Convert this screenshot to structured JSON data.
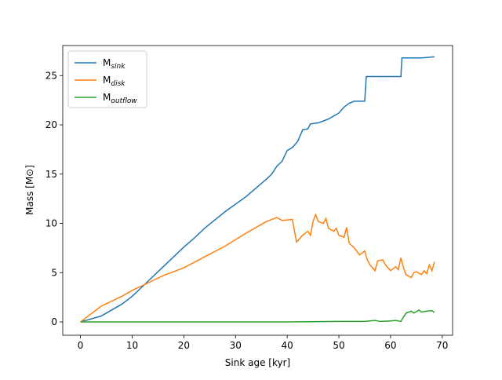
{
  "chart_data": {
    "type": "line",
    "xlabel": "Sink age [kyr]",
    "ylabel": "Mass [M⊙]",
    "xlim": [
      -3.43,
      72.0
    ],
    "ylim": [
      -1.35,
      28.05
    ],
    "xticks": [
      0,
      10,
      20,
      30,
      40,
      50,
      60,
      70
    ],
    "yticks": [
      0,
      5,
      10,
      15,
      20,
      25
    ],
    "legend": "upper left",
    "series": [
      {
        "name": "Msink",
        "color": "#1f77b4",
        "x": [
          0,
          4,
          8,
          10,
          12,
          16,
          20,
          22,
          24,
          28,
          32,
          34,
          36,
          37,
          38,
          39,
          40,
          41,
          42,
          43,
          44,
          44.5,
          46,
          48,
          50,
          51,
          52,
          53,
          55,
          55.3,
          62,
          62.2,
          66,
          68.5
        ],
        "values": [
          0,
          0.6,
          1.8,
          2.6,
          3.6,
          5.6,
          7.6,
          8.5,
          9.5,
          11.2,
          12.7,
          13.6,
          14.5,
          15.0,
          15.8,
          16.3,
          17.4,
          17.7,
          18.3,
          19.5,
          19.6,
          20.1,
          20.2,
          20.6,
          21.2,
          21.8,
          22.2,
          22.4,
          22.4,
          24.9,
          24.9,
          26.8,
          26.8,
          26.9
        ]
      },
      {
        "name": "Mdisk",
        "color": "#ff7f0e",
        "x": [
          0,
          4,
          8,
          10,
          12,
          16,
          20,
          24,
          28,
          32,
          36,
          38,
          39,
          41,
          41.8,
          43,
          44,
          44.5,
          45,
          45.5,
          46,
          47,
          47.5,
          48,
          49,
          49.5,
          50,
          51,
          51.5,
          52,
          53,
          54,
          55,
          55.5,
          56,
          57,
          57.5,
          58.5,
          59,
          60,
          61,
          61.5,
          62,
          62.5,
          63,
          64,
          64.5,
          65,
          66,
          66.5,
          67,
          67.5,
          68,
          68.5
        ],
        "values": [
          0,
          1.6,
          2.6,
          3.2,
          3.7,
          4.7,
          5.5,
          6.6,
          7.7,
          9.0,
          10.2,
          10.6,
          10.3,
          10.4,
          8.1,
          8.8,
          9.2,
          8.8,
          10.2,
          10.9,
          10.2,
          10.0,
          10.5,
          9.5,
          9.2,
          9.5,
          8.8,
          8.6,
          9.6,
          8.0,
          7.5,
          6.8,
          7.2,
          6.3,
          5.8,
          5.2,
          6.2,
          6.3,
          5.8,
          5.2,
          5.6,
          5.3,
          6.5,
          5.5,
          4.8,
          4.5,
          5.0,
          5.1,
          4.8,
          5.2,
          4.9,
          5.8,
          5.2,
          6.1
        ]
      },
      {
        "name": "Moutflow",
        "color": "#2ca02c",
        "x": [
          0,
          40,
          50,
          55,
          57,
          58,
          60,
          61,
          62,
          62.5,
          63,
          64,
          64.5,
          65,
          65.5,
          66,
          67,
          68,
          68.5
        ],
        "values": [
          0,
          0,
          0.05,
          0.05,
          0.15,
          0.05,
          0.1,
          0.15,
          0.05,
          0.5,
          0.9,
          1.1,
          0.9,
          1.05,
          1.2,
          1.0,
          1.1,
          1.15,
          0.95
        ]
      }
    ]
  }
}
